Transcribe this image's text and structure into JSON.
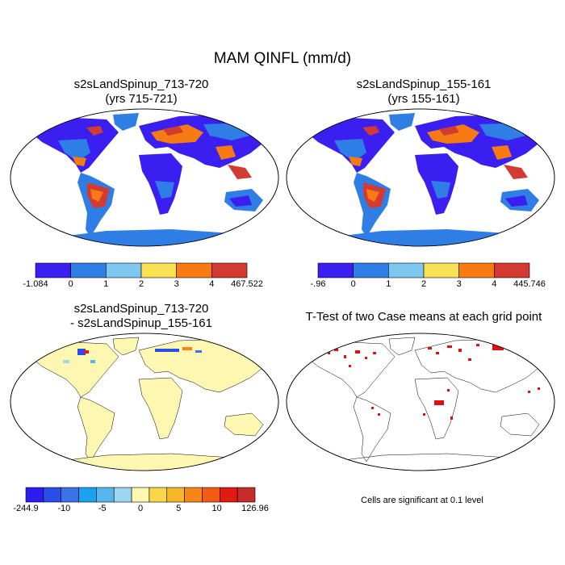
{
  "main_title": "MAM QINFL (mm/d)",
  "panels": [
    {
      "title_line1": "s2sLandSpinup_713-720",
      "title_line2": "(yrs 715-721)"
    },
    {
      "title_line1": "s2sLandSpinup_155-161",
      "title_line2": "(yrs 155-161)"
    },
    {
      "title_line1": "s2sLandSpinup_713-720",
      "title_line2": "- s2sLandSpinup_155-161"
    },
    {
      "title_line1": "T-Test of two Case means at each grid point"
    }
  ],
  "colorbars": [
    {
      "colors": [
        "#3b1ef0",
        "#2f7ee6",
        "#7ec7f0",
        "#f8e154",
        "#f77b12",
        "#d23a32"
      ],
      "labels": [
        "-1.084",
        "0",
        "1",
        "2",
        "3",
        "4",
        "467.522"
      ]
    },
    {
      "colors": [
        "#3b1ef0",
        "#2f7ee6",
        "#7ec7f0",
        "#f8e154",
        "#f77b12",
        "#d23a32"
      ],
      "labels": [
        "-.96",
        "0",
        "1",
        "2",
        "3",
        "4",
        "445.746"
      ]
    },
    {
      "colors": [
        "#2b1cf0",
        "#2a4ce8",
        "#3a72ea",
        "#1aa2f0",
        "#55b6ee",
        "#9dd6f2",
        "#fdf7b2",
        "#f9d64a",
        "#f8b62a",
        "#f68616",
        "#f25a16",
        "#e11b12",
        "#c62a2a"
      ],
      "labels": [
        "-244.9",
        "-10",
        "-5",
        "0",
        "5",
        "10",
        "126.96"
      ]
    }
  ],
  "footnote": "Cells are significant at 0.1 level",
  "colors": {
    "ocean": "#ffffff",
    "land_low": "#2f7ee6",
    "land_mid": "#7ec7f0",
    "land_high": "#f77b12",
    "land_top": "#d23a32",
    "land_very_low": "#3b1ef0",
    "diff_land": "#fdf7b2",
    "ttest_mark": "#e01010"
  }
}
